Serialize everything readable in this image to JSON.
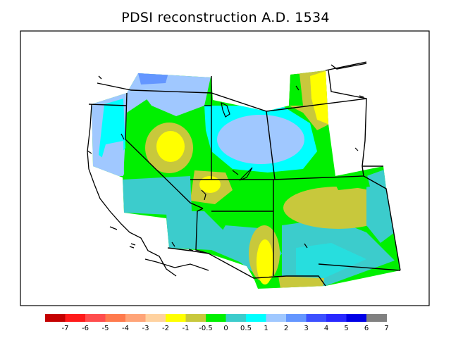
{
  "title": "PDSI reconstruction A.D. 1534",
  "legend": {
    "colors": [
      "#c40000",
      "#ff1a1a",
      "#ff4d4d",
      "#ff7a4d",
      "#ffa478",
      "#ffd2a0",
      "#ffff00",
      "#c8c83c",
      "#00f000",
      "#3ccccc",
      "#00ffff",
      "#a0c8ff",
      "#6496ff",
      "#3c50ff",
      "#2828ff",
      "#0000e6",
      "#808080"
    ],
    "labels": [
      "-7",
      "-6",
      "-5",
      "-4",
      "-3",
      "-2",
      "-1",
      "-0.5",
      "0",
      "0.5",
      "1",
      "2",
      "3",
      "4",
      "5",
      "6",
      "7"
    ]
  }
}
